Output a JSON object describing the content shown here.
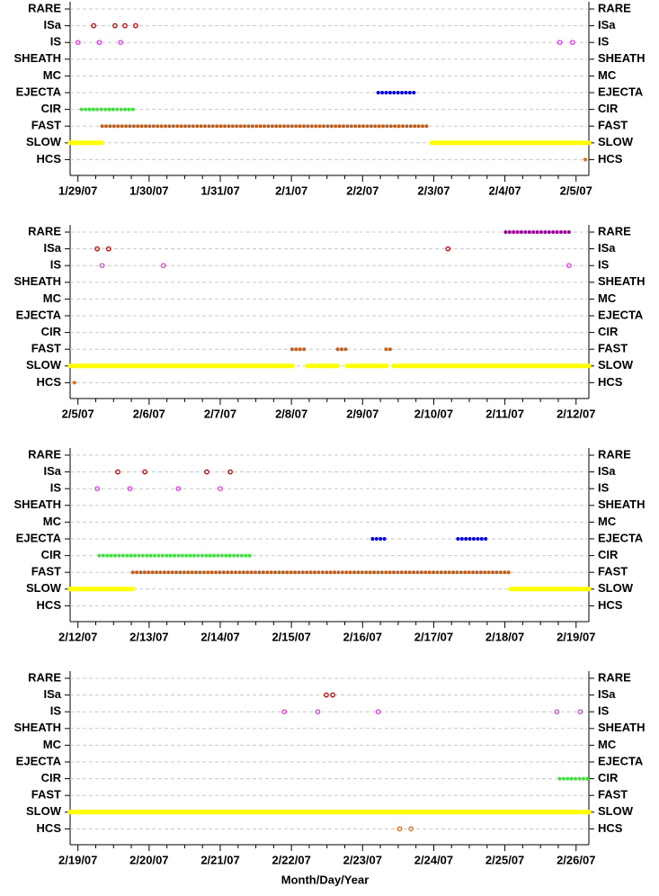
{
  "chart_data": [
    {
      "type": "timeline",
      "categories": [
        "RARE",
        "ISa",
        "IS",
        "SHEATH",
        "MC",
        "EJECTA",
        "CIR",
        "FAST",
        "SLOW",
        "HCS"
      ],
      "xlim": [
        28.89,
        36.18
      ],
      "xticks": [
        {
          "value": 29,
          "label": "1/29/07"
        },
        {
          "value": 30,
          "label": "1/30/07"
        },
        {
          "value": 31,
          "label": "1/31/07"
        },
        {
          "value": 32,
          "label": "2/1/07"
        },
        {
          "value": 33,
          "label": "2/2/07"
        },
        {
          "value": 34,
          "label": "2/3/07"
        },
        {
          "value": 35,
          "label": "2/4/07"
        },
        {
          "value": 36,
          "label": "2/5/07"
        }
      ],
      "series": [
        {
          "name": "ISa",
          "color": "#c00000",
          "x": [
            29.22,
            29.52,
            29.66,
            29.81
          ]
        },
        {
          "name": "IS",
          "color": "#e040e0",
          "x": [
            29.0,
            29.3,
            29.6,
            35.77,
            35.95
          ]
        },
        {
          "name": "EJECTA",
          "color": "#0000e0",
          "x": [
            [
              33.22,
              33.75
            ]
          ]
        },
        {
          "name": "CIR",
          "color": "#40e040",
          "x": [
            [
              29.05,
              29.8
            ]
          ]
        },
        {
          "name": "FAST",
          "color": "#c06020",
          "x": [
            [
              29.34,
              33.95
            ]
          ]
        },
        {
          "name": "SLOW",
          "color": "#ffff00",
          "x": [
            [
              28.89,
              29.33
            ],
            [
              33.97,
              36.18
            ]
          ]
        },
        {
          "name": "HCS",
          "color": "#e07020",
          "x": [
            [
              36.13,
              36.16
            ]
          ]
        }
      ]
    },
    {
      "type": "timeline",
      "categories": [
        "RARE",
        "ISa",
        "IS",
        "SHEATH",
        "MC",
        "EJECTA",
        "CIR",
        "FAST",
        "SLOW",
        "HCS"
      ],
      "xlim": [
        35.89,
        43.18
      ],
      "xticks": [
        {
          "value": 36,
          "label": "2/5/07"
        },
        {
          "value": 37,
          "label": "2/6/07"
        },
        {
          "value": 38,
          "label": "2/7/07"
        },
        {
          "value": 39,
          "label": "2/8/07"
        },
        {
          "value": 40,
          "label": "2/9/07"
        },
        {
          "value": 41,
          "label": "2/10/07"
        },
        {
          "value": 42,
          "label": "2/11/07"
        },
        {
          "value": 43,
          "label": "2/12/07"
        }
      ],
      "series": [
        {
          "name": "RARE",
          "color": "#a000a0",
          "x": [
            [
              42.01,
              42.9
            ]
          ]
        },
        {
          "name": "ISa",
          "color": "#c00000",
          "x": [
            36.27,
            36.43,
            41.2
          ]
        },
        {
          "name": "IS",
          "color": "#e040e0",
          "x": [
            36.34,
            37.2,
            42.9
          ]
        },
        {
          "name": "FAST",
          "color": "#c06020",
          "x": [
            [
              39.01,
              39.22
            ],
            [
              39.65,
              39.77
            ],
            [
              40.33,
              40.43
            ]
          ]
        },
        {
          "name": "SLOW",
          "color": "#ffff00",
          "x": [
            [
              35.89,
              39.01
            ],
            [
              39.22,
              39.65
            ],
            [
              39.78,
              40.34
            ],
            [
              40.44,
              43.18
            ]
          ]
        },
        {
          "name": "HCS",
          "color": "#e07020",
          "x": [
            [
              35.95,
              36.0
            ]
          ]
        }
      ]
    },
    {
      "type": "timeline",
      "categories": [
        "RARE",
        "ISa",
        "IS",
        "SHEATH",
        "MC",
        "EJECTA",
        "CIR",
        "FAST",
        "SLOW",
        "HCS"
      ],
      "xlim": [
        42.89,
        50.18
      ],
      "xticks": [
        {
          "value": 43,
          "label": "2/12/07"
        },
        {
          "value": 44,
          "label": "2/13/07"
        },
        {
          "value": 45,
          "label": "2/14/07"
        },
        {
          "value": 46,
          "label": "2/15/07"
        },
        {
          "value": 47,
          "label": "2/16/07"
        },
        {
          "value": 48,
          "label": "2/17/07"
        },
        {
          "value": 49,
          "label": "2/18/07"
        },
        {
          "value": 50,
          "label": "2/19/07"
        }
      ],
      "series": [
        {
          "name": "ISa",
          "color": "#c00000",
          "x": [
            43.56,
            43.94,
            44.81,
            45.14
          ]
        },
        {
          "name": "IS",
          "color": "#e040e0",
          "x": [
            43.27,
            43.73,
            44.41,
            45.0
          ]
        },
        {
          "name": "EJECTA",
          "color": "#0000e0",
          "x": [
            [
              47.14,
              47.34
            ],
            [
              48.34,
              48.76
            ]
          ]
        },
        {
          "name": "CIR",
          "color": "#40e040",
          "x": [
            [
              43.3,
              45.42
            ]
          ]
        },
        {
          "name": "FAST",
          "color": "#c06020",
          "x": [
            [
              43.77,
              49.08
            ]
          ]
        },
        {
          "name": "SLOW",
          "color": "#ffff00",
          "x": [
            [
              42.89,
              43.77
            ],
            [
              49.08,
              50.18
            ]
          ]
        }
      ]
    },
    {
      "type": "timeline",
      "categories": [
        "RARE",
        "ISa",
        "IS",
        "SHEATH",
        "MC",
        "EJECTA",
        "CIR",
        "FAST",
        "SLOW",
        "HCS"
      ],
      "xlim": [
        49.89,
        57.18
      ],
      "xticks": [
        {
          "value": 50,
          "label": "2/19/07"
        },
        {
          "value": 51,
          "label": "2/20/07"
        },
        {
          "value": 52,
          "label": "2/21/07"
        },
        {
          "value": 53,
          "label": "2/22/07"
        },
        {
          "value": 54,
          "label": "2/23/07"
        },
        {
          "value": 55,
          "label": "2/24/07"
        },
        {
          "value": 56,
          "label": "2/25/07"
        },
        {
          "value": 57,
          "label": "2/26/07"
        }
      ],
      "xlabel": "Month/Day/Year",
      "series": [
        {
          "name": "ISa",
          "color": "#c00000",
          "x": [
            53.49,
            53.58
          ]
        },
        {
          "name": "IS",
          "color": "#e040e0",
          "x": [
            52.9,
            53.37,
            54.22,
            56.73,
            57.06
          ]
        },
        {
          "name": "CIR",
          "color": "#40e040",
          "x": [
            [
              56.77,
              57.18
            ]
          ]
        },
        {
          "name": "SLOW",
          "color": "#ffff00",
          "x": [
            [
              49.89,
              57.18
            ]
          ]
        },
        {
          "name": "HCS",
          "color": "#e07020",
          "x": [
            54.52,
            54.68
          ]
        }
      ]
    }
  ]
}
